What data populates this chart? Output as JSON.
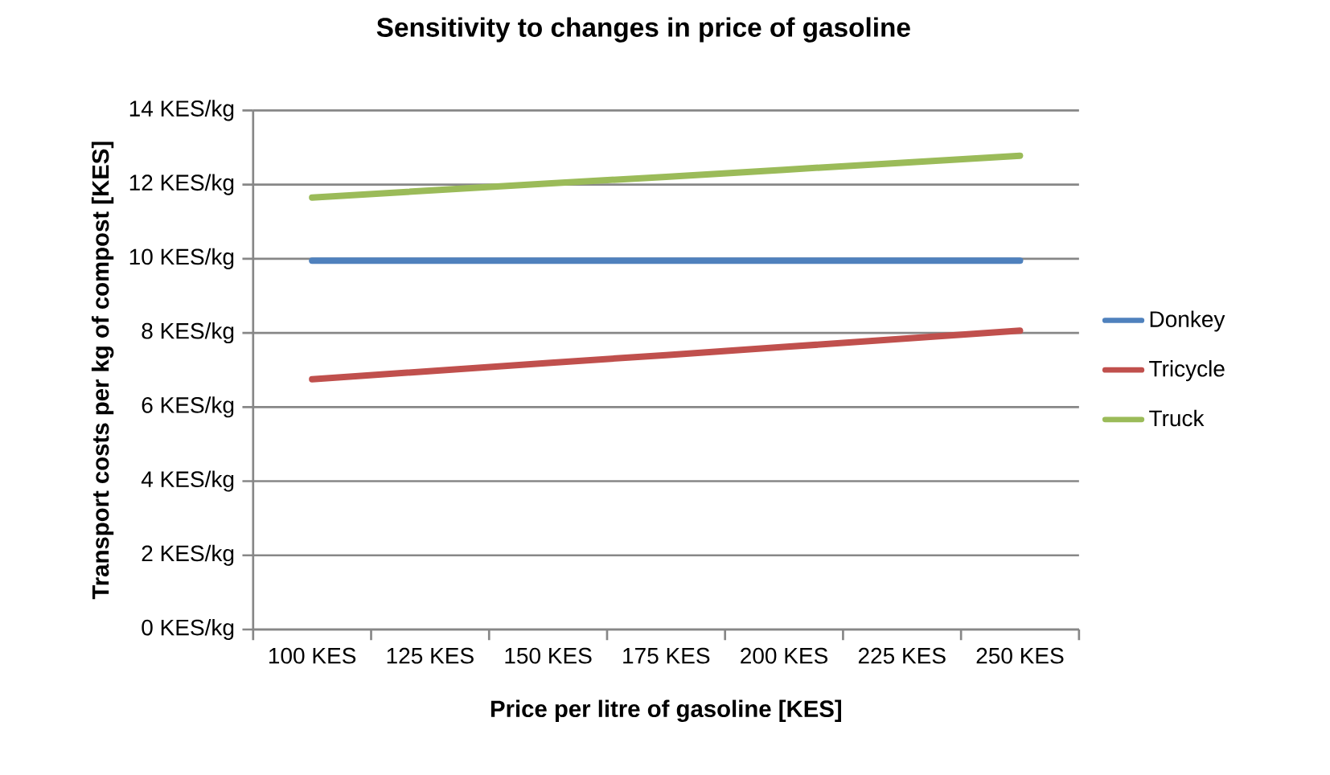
{
  "chart_data": {
    "type": "line",
    "title": "Sensitivity to changes in price of gasoline",
    "xlabel": "Price per litre of gasoline [KES]",
    "ylabel": "Transport costs per kg of compost [KES]",
    "categories": [
      "100 KES",
      "125 KES",
      "150 KES",
      "175 KES",
      "200 KES",
      "225 KES",
      "250 KES"
    ],
    "series": [
      {
        "name": "Donkey",
        "color": "#4f81bd",
        "values": [
          9.95,
          9.95,
          9.95,
          9.95,
          9.95,
          9.95,
          9.95
        ]
      },
      {
        "name": "Tricycle",
        "color": "#c0504d",
        "values": [
          6.75,
          6.97,
          7.19,
          7.4,
          7.62,
          7.84,
          8.06
        ]
      },
      {
        "name": "Truck",
        "color": "#9bbb59",
        "values": [
          11.65,
          11.84,
          12.03,
          12.21,
          12.4,
          12.59,
          12.78
        ]
      }
    ],
    "ylim": [
      0,
      14
    ],
    "yticks": [
      {
        "value": 0,
        "label": "0 KES/kg"
      },
      {
        "value": 2,
        "label": "2 KES/kg"
      },
      {
        "value": 4,
        "label": "4 KES/kg"
      },
      {
        "value": 6,
        "label": "6 KES/kg"
      },
      {
        "value": 8,
        "label": "8 KES/kg"
      },
      {
        "value": 10,
        "label": "10 KES/kg"
      },
      {
        "value": 12,
        "label": "12 KES/kg"
      },
      {
        "value": 14,
        "label": "14 KES/kg"
      }
    ],
    "grid": "y",
    "legend": "right",
    "marker": "none",
    "line_style": "solid"
  }
}
